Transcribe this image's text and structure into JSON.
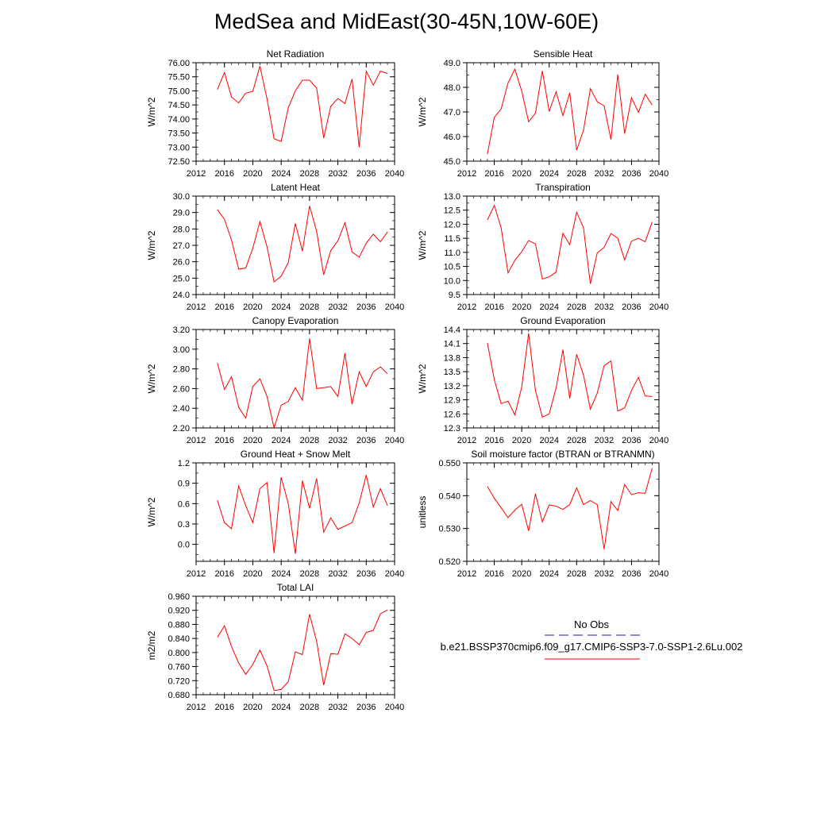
{
  "title": "MedSea and MidEast(30-45N,10W-60E)",
  "colors": {
    "model_line": "#ff0000",
    "obs_line": "#1a1aa6",
    "axis": "#000000"
  },
  "legend": {
    "obs_label": "No Obs",
    "case_label": "b.e21.BSSP370cmip6.f09_g17.CMIP6-SSP3-7.0-SSP1-2.6Lu.002"
  },
  "chart_data": [
    {
      "type": "line",
      "title": "Net Radiation",
      "ylabel": "W/m^2",
      "xlim": [
        2012,
        2040
      ],
      "ylim": [
        72.5,
        76.0
      ],
      "xticks": [
        "2012",
        "2016",
        "2020",
        "2024",
        "2028",
        "2032",
        "2036",
        "2040"
      ],
      "yticks": [
        "72.50",
        "73.00",
        "73.50",
        "74.00",
        "74.50",
        "75.00",
        "75.50",
        "76.00"
      ],
      "x": [
        2015,
        2016,
        2017,
        2018,
        2019,
        2020,
        2021,
        2022,
        2023,
        2024,
        2025,
        2026,
        2027,
        2028,
        2029,
        2030,
        2031,
        2032,
        2033,
        2034,
        2035,
        2036,
        2037,
        2038,
        2039
      ],
      "values": [
        75.05,
        75.65,
        74.78,
        74.57,
        74.92,
        74.98,
        75.88,
        74.72,
        73.3,
        73.2,
        74.4,
        75.0,
        75.38,
        75.38,
        75.1,
        73.32,
        74.45,
        74.73,
        74.55,
        75.42,
        73.0,
        75.7,
        75.2,
        75.7,
        75.62
      ]
    },
    {
      "type": "line",
      "title": "Sensible Heat",
      "ylabel": "W/m^2",
      "xlim": [
        2012,
        2040
      ],
      "ylim": [
        45.0,
        49.0
      ],
      "xticks": [
        "2012",
        "2016",
        "2020",
        "2024",
        "2028",
        "2032",
        "2036",
        "2040"
      ],
      "yticks": [
        "45.0",
        "46.0",
        "47.0",
        "48.0",
        "49.0"
      ],
      "x": [
        2015,
        2016,
        2017,
        2018,
        2019,
        2020,
        2021,
        2022,
        2023,
        2024,
        2025,
        2026,
        2027,
        2028,
        2029,
        2030,
        2031,
        2032,
        2033,
        2034,
        2035,
        2036,
        2037,
        2038,
        2039
      ],
      "values": [
        45.28,
        46.78,
        47.12,
        48.18,
        48.74,
        47.85,
        46.6,
        46.95,
        48.67,
        47.02,
        47.82,
        46.85,
        47.78,
        45.45,
        46.25,
        47.95,
        47.42,
        47.25,
        45.88,
        48.52,
        46.12,
        47.58,
        46.98,
        47.72,
        47.28
      ]
    },
    {
      "type": "line",
      "title": "Latent Heat",
      "ylabel": "W/m^2",
      "xlim": [
        2012,
        2040
      ],
      "ylim": [
        24.0,
        30.0
      ],
      "xticks": [
        "2012",
        "2016",
        "2020",
        "2024",
        "2028",
        "2032",
        "2036",
        "2040"
      ],
      "yticks": [
        "24.0",
        "25.0",
        "26.0",
        "27.0",
        "28.0",
        "29.0",
        "30.0"
      ],
      "x": [
        2015,
        2016,
        2017,
        2018,
        2019,
        2020,
        2021,
        2022,
        2023,
        2024,
        2025,
        2026,
        2027,
        2028,
        2029,
        2030,
        2031,
        2032,
        2033,
        2034,
        2035,
        2036,
        2037,
        2038,
        2039
      ],
      "values": [
        29.18,
        28.58,
        27.32,
        25.55,
        25.62,
        26.82,
        28.45,
        26.92,
        24.77,
        25.12,
        25.95,
        28.33,
        26.65,
        29.4,
        27.85,
        25.2,
        26.68,
        27.28,
        28.38,
        26.6,
        26.28,
        27.13,
        27.68,
        27.22,
        27.82
      ]
    },
    {
      "type": "line",
      "title": "Transpiration",
      "ylabel": "W/m^2",
      "xlim": [
        2012,
        2040
      ],
      "ylim": [
        9.5,
        13.0
      ],
      "xticks": [
        "2012",
        "2016",
        "2020",
        "2024",
        "2028",
        "2032",
        "2036",
        "2040"
      ],
      "yticks": [
        "9.5",
        "10.0",
        "10.5",
        "11.0",
        "11.5",
        "12.0",
        "12.5",
        "13.0"
      ],
      "x": [
        2015,
        2016,
        2017,
        2018,
        2019,
        2020,
        2021,
        2022,
        2023,
        2024,
        2025,
        2026,
        2027,
        2028,
        2029,
        2030,
        2031,
        2032,
        2033,
        2034,
        2035,
        2036,
        2037,
        2038,
        2039
      ],
      "values": [
        12.15,
        12.67,
        11.87,
        10.27,
        10.72,
        11.02,
        11.42,
        11.3,
        10.05,
        10.13,
        10.3,
        11.68,
        11.27,
        12.43,
        11.88,
        9.88,
        10.98,
        11.18,
        11.67,
        11.5,
        10.73,
        11.4,
        11.5,
        11.38,
        12.08
      ]
    },
    {
      "type": "line",
      "title": "Canopy Evaporation",
      "ylabel": "W/m^2",
      "xlim": [
        2012,
        2040
      ],
      "ylim": [
        2.2,
        3.2
      ],
      "xticks": [
        "2012",
        "2016",
        "2020",
        "2024",
        "2028",
        "2032",
        "2036",
        "2040"
      ],
      "yticks": [
        "2.20",
        "2.40",
        "2.60",
        "2.80",
        "3.00",
        "3.20"
      ],
      "x": [
        2015,
        2016,
        2017,
        2018,
        2019,
        2020,
        2021,
        2022,
        2023,
        2024,
        2025,
        2026,
        2027,
        2028,
        2029,
        2030,
        2031,
        2032,
        2033,
        2034,
        2035,
        2036,
        2037,
        2038,
        2039
      ],
      "values": [
        2.86,
        2.59,
        2.72,
        2.41,
        2.3,
        2.62,
        2.7,
        2.52,
        2.2,
        2.43,
        2.47,
        2.61,
        2.48,
        3.11,
        2.6,
        2.61,
        2.62,
        2.52,
        2.96,
        2.44,
        2.77,
        2.62,
        2.77,
        2.82,
        2.75
      ]
    },
    {
      "type": "line",
      "title": "Ground Evaporation",
      "ylabel": "W/m^2",
      "xlim": [
        2012,
        2040
      ],
      "ylim": [
        12.3,
        14.4
      ],
      "xticks": [
        "2012",
        "2016",
        "2020",
        "2024",
        "2028",
        "2032",
        "2036",
        "2040"
      ],
      "yticks": [
        "12.3",
        "12.6",
        "12.9",
        "13.2",
        "13.5",
        "13.8",
        "14.1",
        "14.4"
      ],
      "x": [
        2015,
        2016,
        2017,
        2018,
        2019,
        2020,
        2021,
        2022,
        2023,
        2024,
        2025,
        2026,
        2027,
        2028,
        2029,
        2030,
        2031,
        2032,
        2033,
        2034,
        2035,
        2036,
        2037,
        2038,
        2039
      ],
      "values": [
        14.11,
        13.33,
        12.82,
        12.87,
        12.58,
        13.17,
        14.32,
        13.1,
        12.53,
        12.6,
        13.15,
        13.97,
        12.93,
        13.87,
        13.43,
        12.7,
        13.04,
        13.63,
        13.73,
        12.66,
        12.73,
        13.1,
        13.38,
        12.98,
        12.97
      ]
    },
    {
      "type": "line",
      "title": "Ground Heat + Snow Melt",
      "ylabel": "W/m^2",
      "xlim": [
        2012,
        2040
      ],
      "ylim": [
        -0.25,
        1.2
      ],
      "xticks": [
        "2012",
        "2016",
        "2020",
        "2024",
        "2028",
        "2032",
        "2036",
        "2040"
      ],
      "yticks": [
        "0.0",
        "0.3",
        "0.6",
        "0.9",
        "1.2"
      ],
      "x": [
        2015,
        2016,
        2017,
        2018,
        2019,
        2020,
        2021,
        2022,
        2023,
        2024,
        2025,
        2026,
        2027,
        2028,
        2029,
        2030,
        2031,
        2032,
        2033,
        2034,
        2035,
        2036,
        2037,
        2038,
        2039
      ],
      "values": [
        0.65,
        0.32,
        0.23,
        0.86,
        0.57,
        0.32,
        0.82,
        0.91,
        -0.13,
        0.99,
        0.6,
        -0.14,
        0.94,
        0.53,
        0.97,
        0.18,
        0.39,
        0.22,
        0.27,
        0.32,
        0.61,
        1.02,
        0.55,
        0.82,
        0.57
      ]
    },
    {
      "type": "line",
      "title": "Soil moisture factor (BTRAN or BTRANMN)",
      "ylabel": "unitless",
      "xlim": [
        2012,
        2040
      ],
      "ylim": [
        0.52,
        0.55
      ],
      "xticks": [
        "2012",
        "2016",
        "2020",
        "2024",
        "2028",
        "2032",
        "2036",
        "2040"
      ],
      "yticks": [
        "0.520",
        "0.530",
        "0.540",
        "0.550"
      ],
      "x": [
        2015,
        2016,
        2017,
        2018,
        2019,
        2020,
        2021,
        2022,
        2023,
        2024,
        2025,
        2026,
        2027,
        2028,
        2029,
        2030,
        2031,
        2032,
        2033,
        2034,
        2035,
        2036,
        2037,
        2038,
        2039
      ],
      "values": [
        0.5428,
        0.5392,
        0.5363,
        0.5333,
        0.5356,
        0.5374,
        0.5293,
        0.5406,
        0.532,
        0.5372,
        0.5368,
        0.5358,
        0.5373,
        0.5424,
        0.5373,
        0.5385,
        0.5373,
        0.5237,
        0.5382,
        0.5355,
        0.5434,
        0.5403,
        0.5409,
        0.5407,
        0.5484
      ]
    },
    {
      "type": "line",
      "title": "Total LAI",
      "ylabel": "m2/m2",
      "xlim": [
        2012,
        2040
      ],
      "ylim": [
        0.68,
        0.96
      ],
      "xticks": [
        "2012",
        "2016",
        "2020",
        "2024",
        "2028",
        "2032",
        "2036",
        "2040"
      ],
      "yticks": [
        "0.680",
        "0.720",
        "0.760",
        "0.800",
        "0.840",
        "0.880",
        "0.920",
        "0.960"
      ],
      "x": [
        2015,
        2016,
        2017,
        2018,
        2019,
        2020,
        2021,
        2022,
        2023,
        2024,
        2025,
        2026,
        2027,
        2028,
        2029,
        2030,
        2031,
        2032,
        2033,
        2034,
        2035,
        2036,
        2037,
        2038,
        2039
      ],
      "values": [
        0.843,
        0.876,
        0.817,
        0.77,
        0.738,
        0.766,
        0.807,
        0.762,
        0.692,
        0.695,
        0.717,
        0.802,
        0.794,
        0.909,
        0.832,
        0.707,
        0.797,
        0.795,
        0.853,
        0.84,
        0.822,
        0.857,
        0.863,
        0.91,
        0.921
      ]
    }
  ]
}
